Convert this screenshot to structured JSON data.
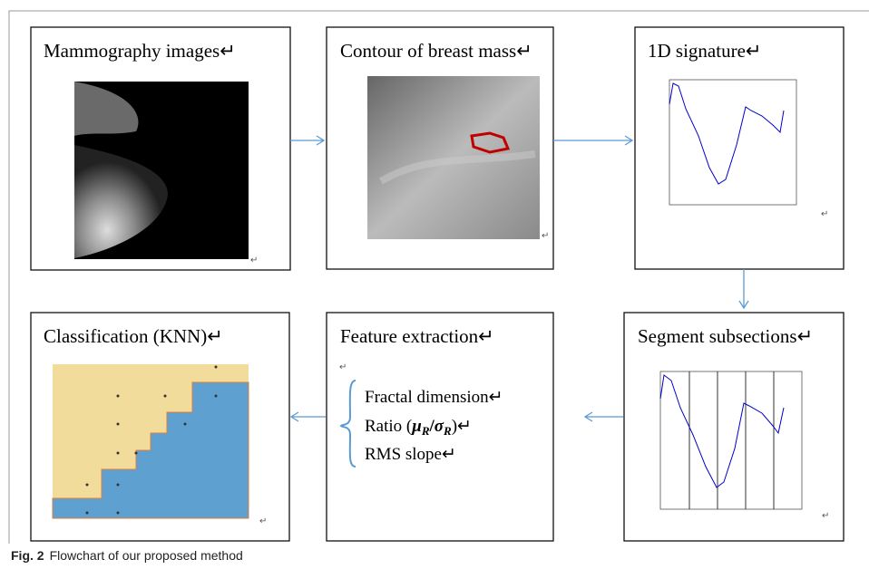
{
  "boxes": [
    {
      "title": "Mammography images↵"
    },
    {
      "title": "Contour of breast mass↵"
    },
    {
      "title": "1D signature↵"
    },
    {
      "title": "Classification (KNN)↵"
    },
    {
      "title": "Feature extraction↵",
      "features": [
        "Fractal dimension↵",
        "RMS slope↵"
      ],
      "ratio": {
        "prefix": "Ratio (",
        "mu": "μ",
        "sub": "R",
        "slash": "/",
        "sigma": "σ",
        "suffix": ")↵"
      }
    },
    {
      "title": "Segment subsections↵"
    }
  ],
  "paragraph_mark": "↵",
  "caption": {
    "label": "Fig. 2",
    "text": "Flowchart of our proposed method"
  }
}
